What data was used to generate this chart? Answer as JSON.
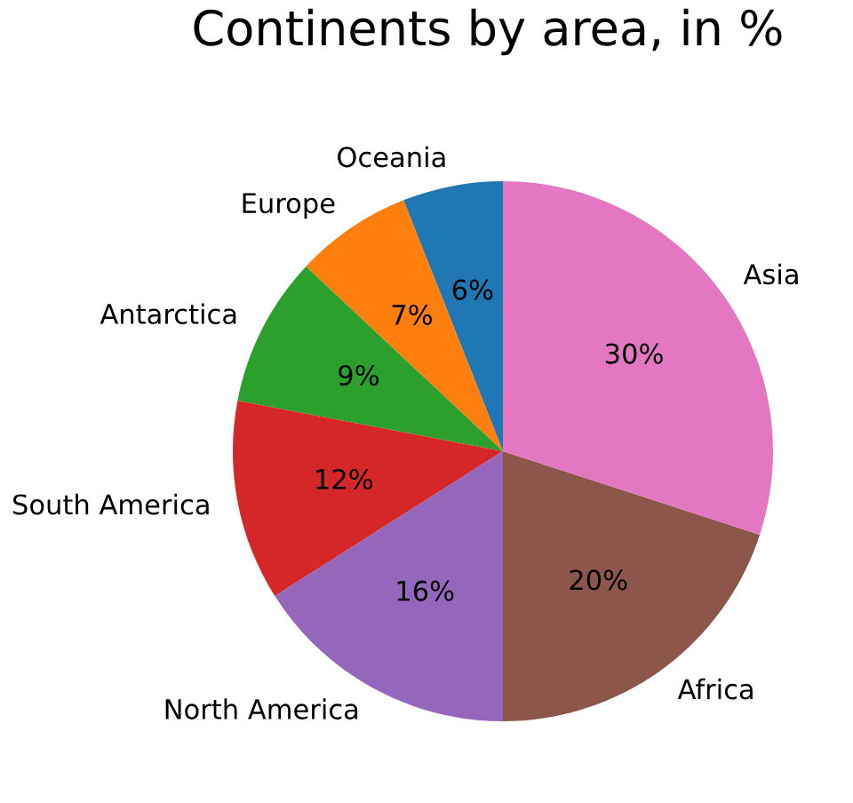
{
  "chart_data": {
    "type": "pie",
    "title": "Continents by area, in %",
    "categories": [
      "Oceania",
      "Europe",
      "Antarctica",
      "South America",
      "North America",
      "Africa",
      "Asia"
    ],
    "values": [
      6,
      7,
      9,
      12,
      16,
      20,
      30
    ],
    "colors": [
      "#1f77b4",
      "#ff7f0e",
      "#2ca02c",
      "#d62728",
      "#9467bd",
      "#8c564b",
      "#e377c2"
    ],
    "value_labels": [
      "6%",
      "7%",
      "9%",
      "12%",
      "16%",
      "20%",
      "30%"
    ]
  }
}
